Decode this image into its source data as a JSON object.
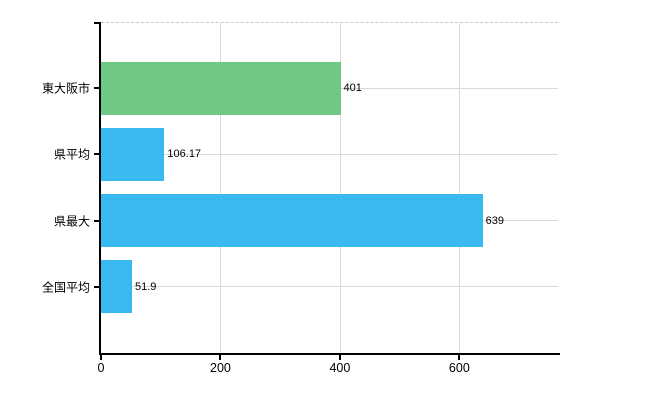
{
  "chart_data": {
    "type": "bar",
    "orientation": "horizontal",
    "title": "",
    "categories": [
      "東大阪市",
      "県平均",
      "県最大",
      "全国平均"
    ],
    "values": [
      401,
      106.17,
      639,
      51.9
    ],
    "value_labels": [
      "401",
      "106.17",
      "639",
      "51.9"
    ],
    "bar_colors": [
      "#6fc884",
      "#38baf1",
      "#38baf1",
      "#38baf1"
    ],
    "x_tick_labels": [
      "0",
      "200",
      "400",
      "600"
    ],
    "x_tick_values": [
      0,
      200,
      400,
      600
    ],
    "xlim": [
      0,
      766.8
    ],
    "grid": true,
    "legend_position": "none",
    "colors": {
      "axis": "#000000",
      "gridline": "#d9d9d9",
      "top_border": "#c9c9c9",
      "label_text": "#000000",
      "background": "#ffffff"
    }
  }
}
